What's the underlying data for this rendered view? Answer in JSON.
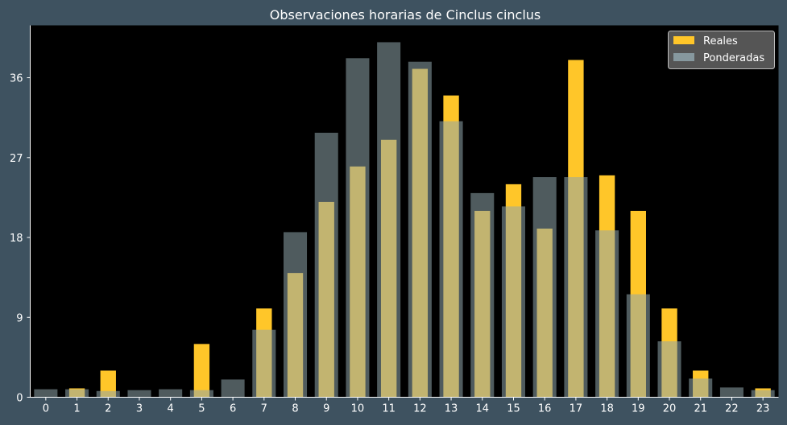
{
  "chart_data": {
    "type": "bar",
    "title": "Observaciones horarias de Cinclus cinclus",
    "xlabel": "",
    "ylabel": "",
    "categories": [
      "0",
      "1",
      "2",
      "3",
      "4",
      "5",
      "6",
      "7",
      "8",
      "9",
      "10",
      "11",
      "12",
      "13",
      "14",
      "15",
      "16",
      "17",
      "18",
      "19",
      "20",
      "21",
      "22",
      "23"
    ],
    "ylim": [
      0,
      41.9
    ],
    "yticks": [
      0,
      9,
      18,
      27,
      36
    ],
    "grid": false,
    "legend_position": "top-right",
    "series": [
      {
        "name": "Reales",
        "color": "#ffc629",
        "values": [
          0,
          1,
          3,
          0,
          0,
          6,
          0,
          10,
          14,
          22,
          26,
          29,
          37,
          34,
          21,
          24,
          19,
          38,
          25,
          21,
          10,
          3,
          0,
          1
        ]
      },
      {
        "name": "Ponderadas",
        "color": "#8fa5ab",
        "opacity": 0.55,
        "values": [
          0.9,
          0.9,
          0.7,
          0.8,
          0.9,
          0.8,
          2.0,
          7.6,
          18.6,
          29.8,
          38.2,
          40.0,
          37.8,
          31.1,
          23.0,
          21.5,
          24.8,
          24.8,
          18.8,
          11.6,
          6.3,
          2.1,
          1.1,
          0.8
        ]
      }
    ]
  },
  "colors": {
    "background": "#3e5260",
    "plot_background": "#000000",
    "legend_background": "#555555",
    "text": "#ffffff"
  }
}
